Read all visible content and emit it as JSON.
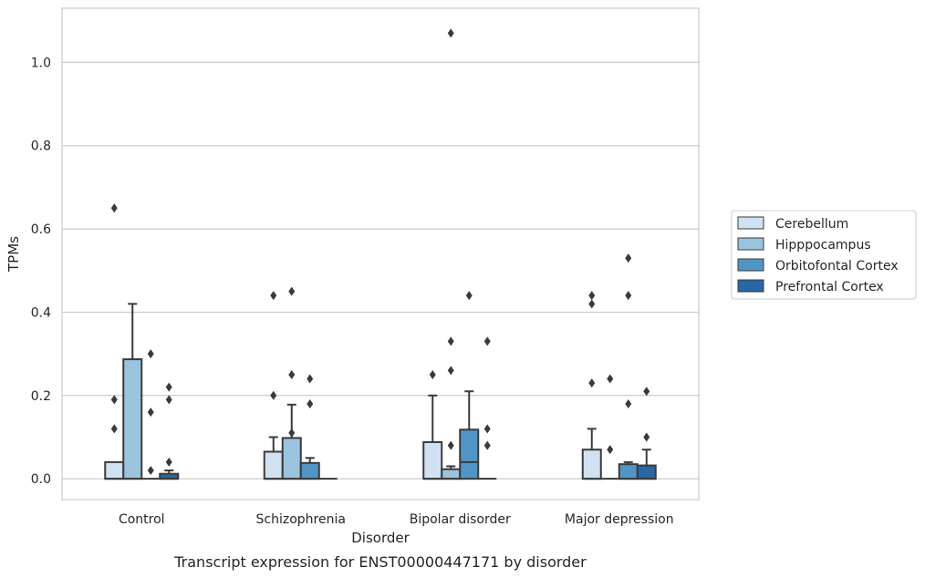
{
  "chart_data": {
    "type": "boxplot",
    "caption": "Transcript expression for ENST00000447171 by disorder",
    "xlabel": "Disorder",
    "ylabel": "TPMs",
    "ylim": [
      -0.05,
      1.13
    ],
    "yticks": [
      0.0,
      0.2,
      0.4,
      0.6,
      0.8,
      1.0
    ],
    "ytick_labels": [
      "0.0",
      "0.2",
      "0.4",
      "0.6",
      "0.8",
      "1.0"
    ],
    "grid": "horizontal",
    "legend_position": "right",
    "categories": [
      "Control",
      "Schizophrenia",
      "Bipolar disorder",
      "Major depression"
    ],
    "series": [
      {
        "name": "Cerebellum",
        "color": "#d0e1f2",
        "boxes": [
          {
            "q1": 0.0,
            "median": 0.0,
            "q3": 0.04,
            "whisker_low": 0.0,
            "whisker_high": 0.04,
            "outliers": [
              0.65,
              0.19,
              0.12
            ]
          },
          {
            "q1": 0.0,
            "median": 0.0,
            "q3": 0.065,
            "whisker_low": 0.0,
            "whisker_high": 0.1,
            "outliers": [
              0.44,
              0.2
            ]
          },
          {
            "q1": 0.0,
            "median": 0.0,
            "q3": 0.088,
            "whisker_low": 0.0,
            "whisker_high": 0.2,
            "outliers": [
              0.25
            ]
          },
          {
            "q1": 0.0,
            "median": 0.0,
            "q3": 0.07,
            "whisker_low": 0.0,
            "whisker_high": 0.12,
            "outliers": [
              0.44,
              0.42,
              0.23
            ]
          }
        ]
      },
      {
        "name": "Hipppocampus",
        "color": "#9ac4de",
        "boxes": [
          {
            "q1": 0.0,
            "median": 0.0,
            "q3": 0.287,
            "whisker_low": 0.0,
            "whisker_high": 0.42,
            "outliers": []
          },
          {
            "q1": 0.0,
            "median": 0.0,
            "q3": 0.098,
            "whisker_low": 0.0,
            "whisker_high": 0.178,
            "outliers": [
              0.45,
              0.25,
              0.11
            ]
          },
          {
            "q1": 0.0,
            "median": 0.0,
            "q3": 0.023,
            "whisker_low": 0.0,
            "whisker_high": 0.03,
            "outliers": [
              1.07,
              0.33,
              0.26,
              0.08
            ]
          },
          {
            "q1": 0.0,
            "median": 0.0,
            "q3": 0.0,
            "whisker_low": 0.0,
            "whisker_high": 0.0,
            "outliers": [
              0.24,
              0.07
            ]
          }
        ]
      },
      {
        "name": "Orbitofontal Cortex",
        "color": "#5195c7",
        "boxes": [
          {
            "q1": 0.0,
            "median": 0.0,
            "q3": 0.0,
            "whisker_low": 0.0,
            "whisker_high": 0.0,
            "outliers": [
              0.3,
              0.16,
              0.02
            ]
          },
          {
            "q1": 0.0,
            "median": 0.0,
            "q3": 0.038,
            "whisker_low": 0.0,
            "whisker_high": 0.05,
            "outliers": [
              0.24,
              0.18
            ]
          },
          {
            "q1": 0.0,
            "median": 0.04,
            "q3": 0.118,
            "whisker_low": 0.0,
            "whisker_high": 0.21,
            "outliers": [
              0.44
            ]
          },
          {
            "q1": 0.0,
            "median": 0.0,
            "q3": 0.035,
            "whisker_low": 0.0,
            "whisker_high": 0.04,
            "outliers": [
              0.53,
              0.44,
              0.18
            ]
          }
        ]
      },
      {
        "name": "Prefrontal Cortex",
        "color": "#2767a5",
        "boxes": [
          {
            "q1": 0.0,
            "median": 0.0,
            "q3": 0.012,
            "whisker_low": 0.0,
            "whisker_high": 0.02,
            "outliers": [
              0.22,
              0.19,
              0.04
            ]
          },
          {
            "q1": 0.0,
            "median": 0.0,
            "q3": 0.0,
            "whisker_low": 0.0,
            "whisker_high": 0.0,
            "outliers": []
          },
          {
            "q1": 0.0,
            "median": 0.0,
            "q3": 0.0,
            "whisker_low": 0.0,
            "whisker_high": 0.0,
            "outliers": [
              0.33,
              0.12,
              0.08
            ]
          },
          {
            "q1": 0.0,
            "median": 0.0,
            "q3": 0.032,
            "whisker_low": 0.0,
            "whisker_high": 0.07,
            "outliers": [
              0.21,
              0.1
            ]
          }
        ]
      }
    ]
  }
}
